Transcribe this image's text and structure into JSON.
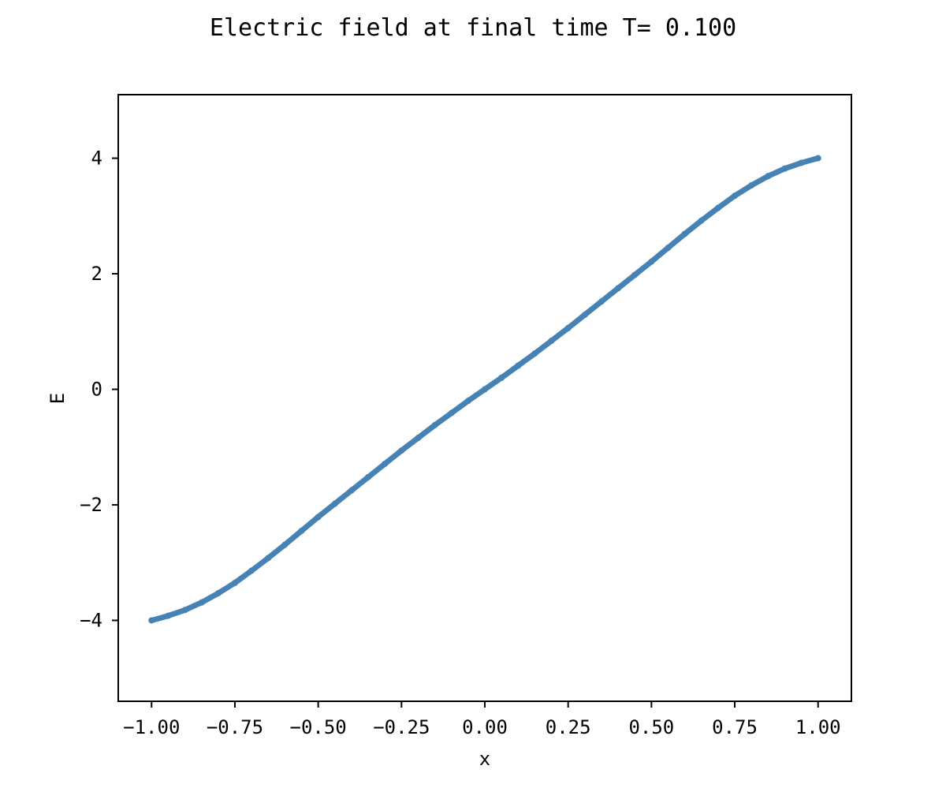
{
  "chart_data": {
    "type": "scatter",
    "title": "Electric field at final time T= 0.100",
    "xlabel": "x",
    "ylabel": "E",
    "xlim": [
      -1.1,
      1.1
    ],
    "ylim": [
      -5.4,
      5.1
    ],
    "x_ticks": [
      -1.0,
      -0.75,
      -0.5,
      -0.25,
      0.0,
      0.25,
      0.5,
      0.75,
      1.0
    ],
    "x_tick_labels": [
      "−1.00",
      "−0.75",
      "−0.50",
      "−0.25",
      "0.00",
      "0.25",
      "0.50",
      "0.75",
      "1.00"
    ],
    "y_ticks": [
      -4,
      -2,
      0,
      2,
      4
    ],
    "y_tick_labels": [
      "−4",
      "−2",
      "0",
      "2",
      "4"
    ],
    "grid": false,
    "legend": "none",
    "series": [
      {
        "color": "#4682b4",
        "x": [
          -1.0,
          -0.95,
          -0.9,
          -0.85,
          -0.8,
          -0.75,
          -0.7,
          -0.65,
          -0.6,
          -0.55,
          -0.5,
          -0.45,
          -0.4,
          -0.35,
          -0.3,
          -0.25,
          -0.2,
          -0.15,
          -0.1,
          -0.05,
          0.0,
          0.05,
          0.1,
          0.15,
          0.2,
          0.25,
          0.3,
          0.35,
          0.4,
          0.45,
          0.5,
          0.55,
          0.6,
          0.65,
          0.7,
          0.75,
          0.8,
          0.85,
          0.9,
          0.95,
          1.0
        ],
        "values": [
          -4.0,
          -3.92,
          -3.82,
          -3.69,
          -3.53,
          -3.35,
          -3.14,
          -2.92,
          -2.69,
          -2.45,
          -2.21,
          -1.98,
          -1.75,
          -1.52,
          -1.29,
          -1.06,
          -0.84,
          -0.62,
          -0.41,
          -0.2,
          0.0,
          0.2,
          0.41,
          0.62,
          0.84,
          1.06,
          1.29,
          1.52,
          1.75,
          1.98,
          2.21,
          2.45,
          2.69,
          2.92,
          3.14,
          3.35,
          3.53,
          3.69,
          3.82,
          3.92,
          4.0
        ]
      }
    ]
  }
}
